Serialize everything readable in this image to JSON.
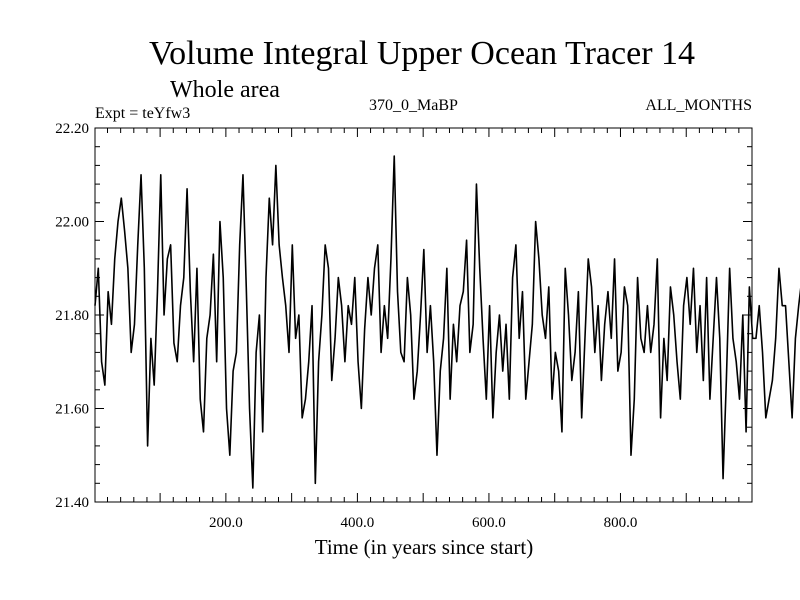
{
  "chart_data": {
    "type": "line",
    "title": "Volume Integral Upper Ocean Tracer 14",
    "subtitle": "Whole area",
    "expt_label": "Expt = teYfw3",
    "run_label": "370_0_MaBP",
    "months_label": "ALL_MONTHS",
    "xlabel": "Time (in years since start)",
    "ylabel": "",
    "xlim": [
      1,
      1000
    ],
    "ylim": [
      21.4,
      22.2
    ],
    "x_ticks": [
      200,
      400,
      600,
      800
    ],
    "x_tick_labels": [
      "200.0",
      "400.0",
      "600.0",
      "800.0"
    ],
    "y_ticks": [
      21.4,
      21.6,
      21.8,
      22.0,
      22.2
    ],
    "y_tick_labels": [
      "21.40",
      "21.60",
      "21.80",
      "22.00",
      "22.20"
    ],
    "series": [
      {
        "name": "Tracer 14 volume integral",
        "x_start": 1,
        "x_step": 5,
        "values": [
          21.82,
          21.9,
          21.7,
          21.65,
          21.85,
          21.78,
          21.92,
          22.0,
          22.05,
          21.98,
          21.9,
          21.72,
          21.78,
          21.95,
          22.1,
          21.9,
          21.52,
          21.75,
          21.65,
          21.85,
          22.1,
          21.8,
          21.92,
          21.95,
          21.74,
          21.7,
          21.82,
          21.88,
          22.07,
          21.85,
          21.7,
          21.9,
          21.62,
          21.55,
          21.75,
          21.8,
          21.93,
          21.7,
          22.0,
          21.88,
          21.6,
          21.5,
          21.68,
          21.72,
          21.95,
          22.1,
          21.86,
          21.6,
          21.43,
          21.72,
          21.8,
          21.55,
          21.88,
          22.05,
          21.95,
          22.12,
          21.95,
          21.88,
          21.82,
          21.72,
          21.95,
          21.75,
          21.8,
          21.58,
          21.62,
          21.7,
          21.82,
          21.44,
          21.7,
          21.8,
          21.95,
          21.9,
          21.66,
          21.75,
          21.88,
          21.82,
          21.7,
          21.82,
          21.78,
          21.88,
          21.7,
          21.6,
          21.77,
          21.88,
          21.8,
          21.9,
          21.95,
          21.72,
          21.82,
          21.75,
          21.92,
          22.14,
          21.85,
          21.72,
          21.7,
          21.88,
          21.8,
          21.62,
          21.68,
          21.8,
          21.94,
          21.72,
          21.82,
          21.7,
          21.5,
          21.68,
          21.75,
          21.9,
          21.62,
          21.78,
          21.7,
          21.82,
          21.85,
          21.96,
          21.72,
          21.78,
          22.08,
          21.9,
          21.75,
          21.62,
          21.82,
          21.58,
          21.72,
          21.8,
          21.68,
          21.78,
          21.62,
          21.88,
          21.95,
          21.75,
          21.85,
          21.62,
          21.7,
          21.78,
          22.0,
          21.92,
          21.8,
          21.75,
          21.86,
          21.62,
          21.72,
          21.68,
          21.55,
          21.9,
          21.8,
          21.66,
          21.72,
          21.85,
          21.58,
          21.75,
          21.92,
          21.86,
          21.72,
          21.82,
          21.66,
          21.78,
          21.85,
          21.75,
          21.92,
          21.68,
          21.72,
          21.86,
          21.82,
          21.5,
          21.62,
          21.88,
          21.75,
          21.72,
          21.82,
          21.72,
          21.78,
          21.92,
          21.58,
          21.75,
          21.66,
          21.86,
          21.8,
          21.7,
          21.62,
          21.82,
          21.88,
          21.78,
          21.9,
          21.72,
          21.82,
          21.66,
          21.88,
          21.62,
          21.75,
          21.88,
          21.75,
          21.45,
          21.66,
          21.9,
          21.75,
          21.7,
          21.62,
          21.8,
          21.55,
          21.86,
          21.75,
          21.75,
          21.82,
          21.72,
          21.58,
          21.62,
          21.66,
          21.75,
          21.9,
          21.82,
          21.82,
          21.7,
          21.58,
          21.75,
          21.82,
          21.88,
          21.92,
          21.68,
          21.82,
          21.62,
          21.72,
          21.96,
          21.78,
          21.65,
          21.72,
          21.85,
          21.78,
          21.82,
          21.74,
          21.58,
          21.72,
          21.94,
          21.86,
          21.75,
          21.52,
          21.66,
          21.82,
          21.72,
          21.86,
          21.7,
          21.75,
          21.82,
          21.72,
          21.85,
          21.78,
          21.78,
          21.62,
          21.7,
          21.82,
          21.9,
          21.55,
          21.75,
          21.8,
          21.72,
          21.82,
          21.9,
          21.8,
          21.62,
          21.78,
          21.7,
          21.58,
          21.85,
          21.95,
          21.8,
          21.72,
          21.72,
          21.55,
          21.85,
          21.78,
          21.78,
          21.72,
          21.82,
          21.68,
          21.75,
          21.92,
          21.85,
          21.72,
          21.72,
          21.9,
          21.8,
          21.62,
          21.78,
          21.75,
          21.82,
          21.7,
          21.54,
          21.75,
          21.85,
          21.7,
          21.78,
          21.82,
          21.64,
          21.72,
          21.8,
          21.74
        ]
      }
    ]
  }
}
